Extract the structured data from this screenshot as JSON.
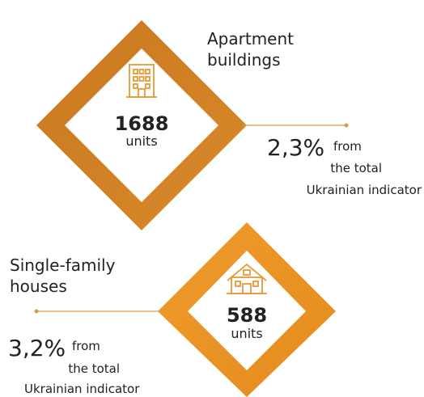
{
  "blocks": [
    {
      "title": [
        "Apartment",
        "buildings"
      ],
      "number": "1688",
      "unit": "units",
      "percent": "2,3%",
      "from": "from",
      "rest": [
        "the total",
        "Ukrainian indicator"
      ]
    },
    {
      "title": [
        "Single-family",
        "houses"
      ],
      "number": "588",
      "unit": "units",
      "percent": "3,2%",
      "from": "from",
      "rest": [
        "the total",
        "Ukrainian indicator"
      ]
    }
  ]
}
